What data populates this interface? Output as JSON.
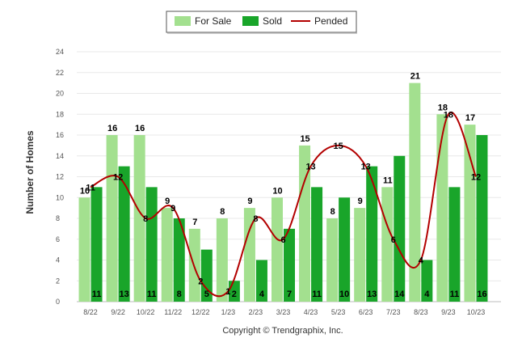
{
  "chart_data": {
    "type": "bar",
    "categories": [
      "8/22",
      "9/22",
      "10/22",
      "11/22",
      "12/22",
      "1/23",
      "2/23",
      "3/23",
      "4/23",
      "5/23",
      "6/23",
      "7/23",
      "8/23",
      "9/23",
      "10/23"
    ],
    "series": [
      {
        "name": "For Sale",
        "kind": "bar",
        "color": "#a3e08f",
        "values": [
          10,
          16,
          16,
          9,
          7,
          8,
          9,
          10,
          15,
          8,
          9,
          11,
          21,
          18,
          17
        ]
      },
      {
        "name": "Sold",
        "kind": "bar",
        "color": "#19a52a",
        "values": [
          11,
          13,
          11,
          8,
          5,
          2,
          4,
          7,
          11,
          10,
          13,
          14,
          4,
          11,
          16
        ]
      },
      {
        "name": "Pended",
        "kind": "line",
        "color": "#b30000",
        "values": [
          11,
          12,
          8,
          9,
          2,
          1,
          8,
          6,
          13,
          15,
          13,
          6,
          4,
          18,
          12
        ]
      }
    ],
    "ylabel": "Number of Homes",
    "xlabel": "",
    "ylim": [
      0,
      24
    ],
    "yticks": [
      0,
      2,
      4,
      6,
      8,
      10,
      12,
      14,
      16,
      18,
      20,
      22,
      24
    ],
    "grid": true,
    "legend_position": "top-center",
    "credit": "Copyright © Trendgraphix, Inc."
  }
}
